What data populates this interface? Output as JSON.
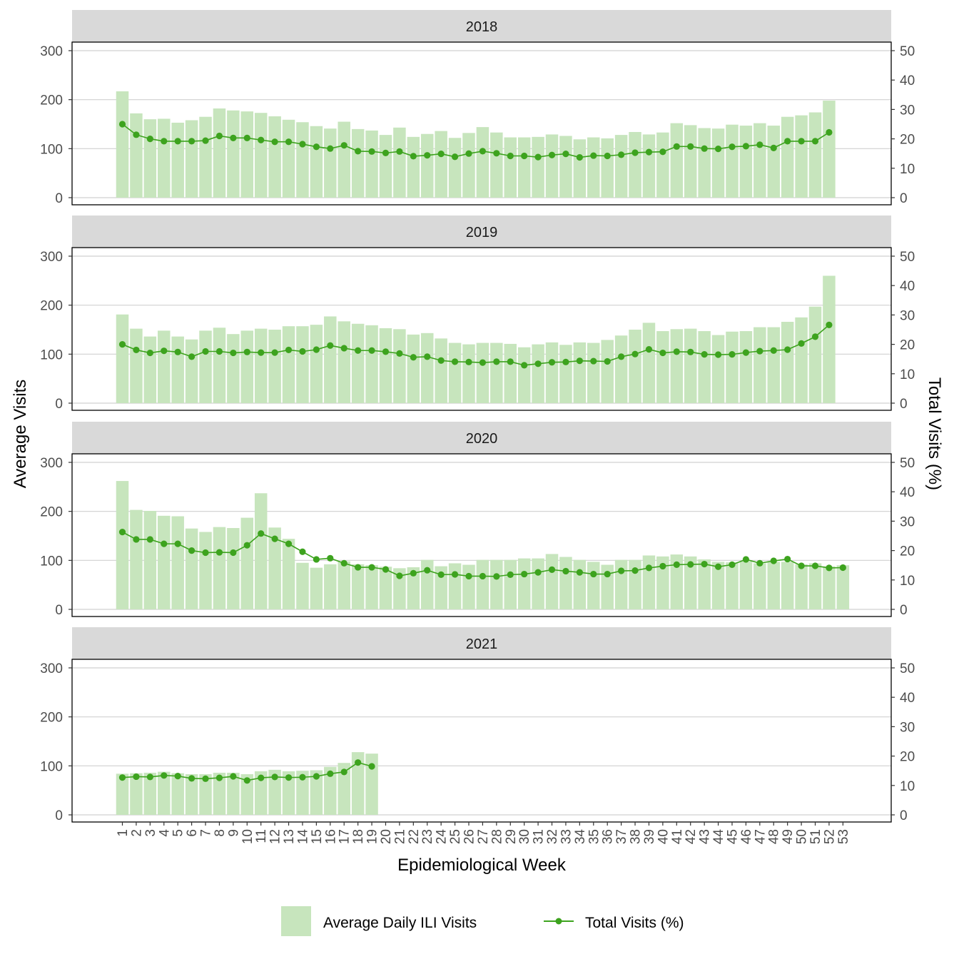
{
  "chart_data": {
    "type": "bar",
    "facet_by": "year",
    "xlabel": "Epidemiological Week",
    "ylabel": "Average Visits",
    "y2label": "Total Visits (%)",
    "ylim": [
      0,
      300
    ],
    "y2lim": [
      0,
      50
    ],
    "yticks": [
      0,
      100,
      200,
      300
    ],
    "y2ticks": [
      0,
      10,
      20,
      30,
      40,
      50
    ],
    "weeks": [
      "1",
      "2",
      "3",
      "4",
      "5",
      "6",
      "7",
      "8",
      "9",
      "10",
      "11",
      "12",
      "13",
      "14",
      "15",
      "16",
      "17",
      "18",
      "19",
      "20",
      "21",
      "22",
      "23",
      "24",
      "25",
      "26",
      "27",
      "28",
      "29",
      "30",
      "31",
      "32",
      "33",
      "34",
      "35",
      "36",
      "37",
      "38",
      "39",
      "40",
      "41",
      "42",
      "43",
      "44",
      "45",
      "46",
      "47",
      "48",
      "49",
      "50",
      "51",
      "52",
      "53"
    ],
    "grid": true,
    "legend_position": "bottom",
    "legend": {
      "bar_label": "Average Daily ILI Visits",
      "line_label": "Total Visits (%)"
    },
    "colors": {
      "bar": "#c7e5bd",
      "line": "#3da31e",
      "strip": "#d9d9d9",
      "grid": "#d0d0d0"
    },
    "panels": [
      {
        "year": "2018",
        "bars": [
          217,
          172,
          160,
          161,
          153,
          158,
          165,
          182,
          178,
          176,
          173,
          166,
          159,
          154,
          146,
          141,
          155,
          140,
          137,
          128,
          143,
          124,
          130,
          136,
          122,
          132,
          144,
          133,
          123,
          123,
          124,
          129,
          126,
          119,
          123,
          121,
          128,
          134,
          129,
          133,
          152,
          148,
          142,
          141,
          149,
          147,
          152,
          147,
          165,
          168,
          174,
          198
        ],
        "line": [
          25,
          21.4,
          20,
          19.2,
          19.2,
          19.2,
          19.4,
          21,
          20.3,
          20.3,
          19.6,
          19,
          19,
          18.2,
          17.3,
          16.7,
          17.8,
          15.8,
          15.7,
          15.2,
          15.7,
          14.1,
          14.4,
          14.9,
          13.9,
          15,
          15.8,
          15.1,
          14.2,
          14.2,
          13.8,
          14.5,
          14.9,
          13.7,
          14.3,
          14.2,
          14.6,
          15.3,
          15.5,
          15.6,
          17.4,
          17.4,
          16.7,
          16.6,
          17.3,
          17.5,
          18,
          16.9,
          19.2,
          19.2,
          19.2,
          22.2
        ]
      },
      {
        "year": "2019",
        "bars": [
          181,
          152,
          136,
          148,
          136,
          130,
          148,
          154,
          141,
          148,
          152,
          150,
          157,
          157,
          160,
          177,
          167,
          162,
          159,
          153,
          151,
          140,
          143,
          132,
          123,
          120,
          123,
          123,
          121,
          114,
          120,
          124,
          119,
          124,
          123,
          129,
          138,
          150,
          164,
          147,
          151,
          152,
          147,
          139,
          146,
          147,
          155,
          155,
          166,
          175,
          197,
          260
        ],
        "line": [
          20,
          18.1,
          17.1,
          17.8,
          17.4,
          15.8,
          17.6,
          17.6,
          17.1,
          17.4,
          17.2,
          17.2,
          18.1,
          17.6,
          18.2,
          19.6,
          18.7,
          17.9,
          17.9,
          17.5,
          16.9,
          15.6,
          15.8,
          14.5,
          14.1,
          14,
          13.8,
          14.1,
          14.1,
          12.9,
          13.4,
          13.9,
          14,
          14.4,
          14.3,
          14.2,
          15.8,
          16.7,
          18.3,
          17.1,
          17.5,
          17.4,
          16.6,
          16.5,
          16.6,
          17.2,
          17.7,
          17.9,
          18.2,
          20.3,
          22.6,
          26.6
        ]
      },
      {
        "year": "2020",
        "bars": [
          262,
          203,
          201,
          191,
          190,
          165,
          158,
          168,
          166,
          187,
          237,
          167,
          144,
          95,
          85,
          92,
          98,
          92,
          90,
          87,
          84,
          86,
          101,
          88,
          94,
          91,
          101,
          101,
          101,
          104,
          104,
          113,
          107,
          101,
          97,
          91,
          101,
          101,
          110,
          108,
          112,
          108,
          102,
          97,
          96,
          98,
          94,
          97,
          97,
          92,
          94,
          88,
          90
        ],
        "line": [
          26.3,
          23.8,
          23.8,
          22.3,
          22.3,
          20,
          19.3,
          19.4,
          19.3,
          21.8,
          25.8,
          24,
          22.3,
          19.6,
          17,
          17.4,
          15.7,
          14.3,
          14.3,
          13.6,
          11.4,
          12.3,
          13.3,
          11.8,
          11.9,
          11.3,
          11.3,
          11.2,
          11.8,
          12,
          12.6,
          13.5,
          13,
          12.6,
          12,
          12,
          13.1,
          13.2,
          14.1,
          14.7,
          15.2,
          15.3,
          15.4,
          14.5,
          15.2,
          17,
          15.7,
          16.5,
          17.1,
          14.8,
          14.8,
          14.1,
          14.2
        ]
      },
      {
        "year": "2021",
        "bars": [
          84,
          85,
          86,
          88,
          85,
          83,
          83,
          86,
          86,
          83,
          89,
          92,
          89,
          90,
          91,
          98,
          106,
          128,
          125
        ],
        "line": [
          12.7,
          13,
          12.9,
          13.4,
          13.2,
          12.4,
          12.3,
          12.6,
          13.1,
          11.7,
          12.6,
          12.9,
          12.7,
          12.8,
          13.1,
          14,
          14.6,
          17.8,
          16.5
        ]
      }
    ]
  }
}
